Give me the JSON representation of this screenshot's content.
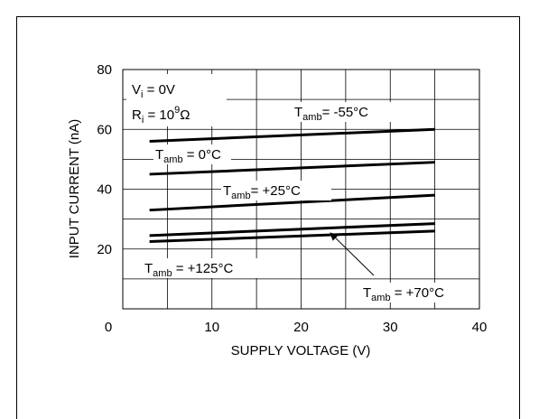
{
  "chart_data": {
    "type": "line",
    "title": "",
    "xlabel": "SUPPLY VOLTAGE (V)",
    "ylabel": "INPUT CURRENT (nA)",
    "xlim": [
      0,
      40
    ],
    "ylim": [
      0,
      80
    ],
    "x_ticks": [
      "0",
      "10",
      "20",
      "30",
      "40"
    ],
    "y_ticks": [
      "20",
      "40",
      "60",
      "80"
    ],
    "grid": true,
    "conditions": [
      {
        "label": "Vi = 0V",
        "parts": [
          "V",
          "i",
          " = 0V"
        ]
      },
      {
        "label": "Ri = 10^9 Ω",
        "parts": [
          "R",
          "i",
          " = 10",
          "9",
          "Ω"
        ]
      }
    ],
    "series": [
      {
        "name": "Tamb = -55°C",
        "label": {
          "sym": "T",
          "sub": "amb",
          "text": "= -55°C"
        },
        "x": [
          3,
          35
        ],
        "y": [
          56,
          60
        ]
      },
      {
        "name": "Tamb = 0°C",
        "label": {
          "sym": "T",
          "sub": "amb",
          "text": " = 0°C"
        },
        "x": [
          3,
          35
        ],
        "y": [
          45,
          49
        ]
      },
      {
        "name": "Tamb = +25°C",
        "label": {
          "sym": "T",
          "sub": "amb",
          "text": "= +25°C"
        },
        "x": [
          3,
          35
        ],
        "y": [
          33,
          38
        ]
      },
      {
        "name": "Tamb = +70°C",
        "label": {
          "sym": "T",
          "sub": "amb",
          "text": " = +70°C"
        },
        "x": [
          3,
          35
        ],
        "y": [
          24.5,
          28.5
        ]
      },
      {
        "name": "Tamb = +125°C",
        "label": {
          "sym": "T",
          "sub": "amb",
          "text": " = +125°C"
        },
        "x": [
          3,
          35
        ],
        "y": [
          22.5,
          26
        ]
      }
    ]
  }
}
